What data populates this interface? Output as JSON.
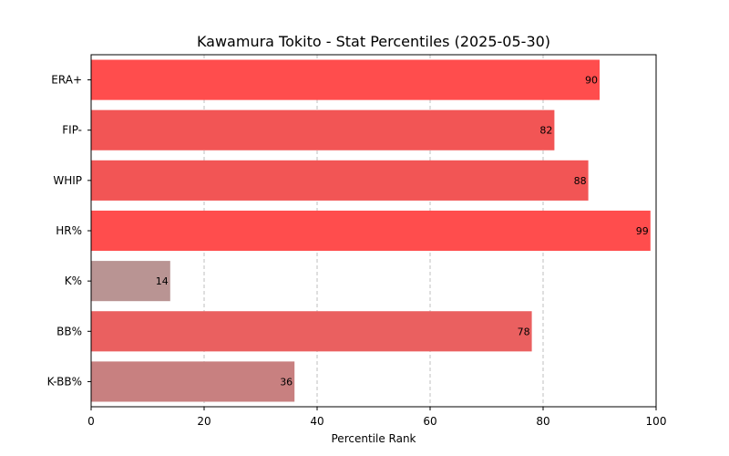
{
  "chart_data": {
    "type": "bar",
    "orientation": "horizontal",
    "title": "Kawamura Tokito - Stat Percentiles (2025-05-30)",
    "xlabel": "Percentile Rank",
    "ylabel": "",
    "xlim": [
      0,
      100
    ],
    "xticks": [
      0,
      20,
      40,
      60,
      80,
      100
    ],
    "grid": "x, dashed",
    "categories": [
      "ERA+",
      "FIP-",
      "WHIP",
      "HR%",
      "K%",
      "BB%",
      "K-BB%"
    ],
    "values": [
      90,
      82,
      88,
      99,
      14,
      78,
      36
    ],
    "colors": [
      "#ff4d4d",
      "#f25555",
      "#f25555",
      "#ff4d4d",
      "#b99493",
      "#ea6060",
      "#c88080"
    ]
  }
}
